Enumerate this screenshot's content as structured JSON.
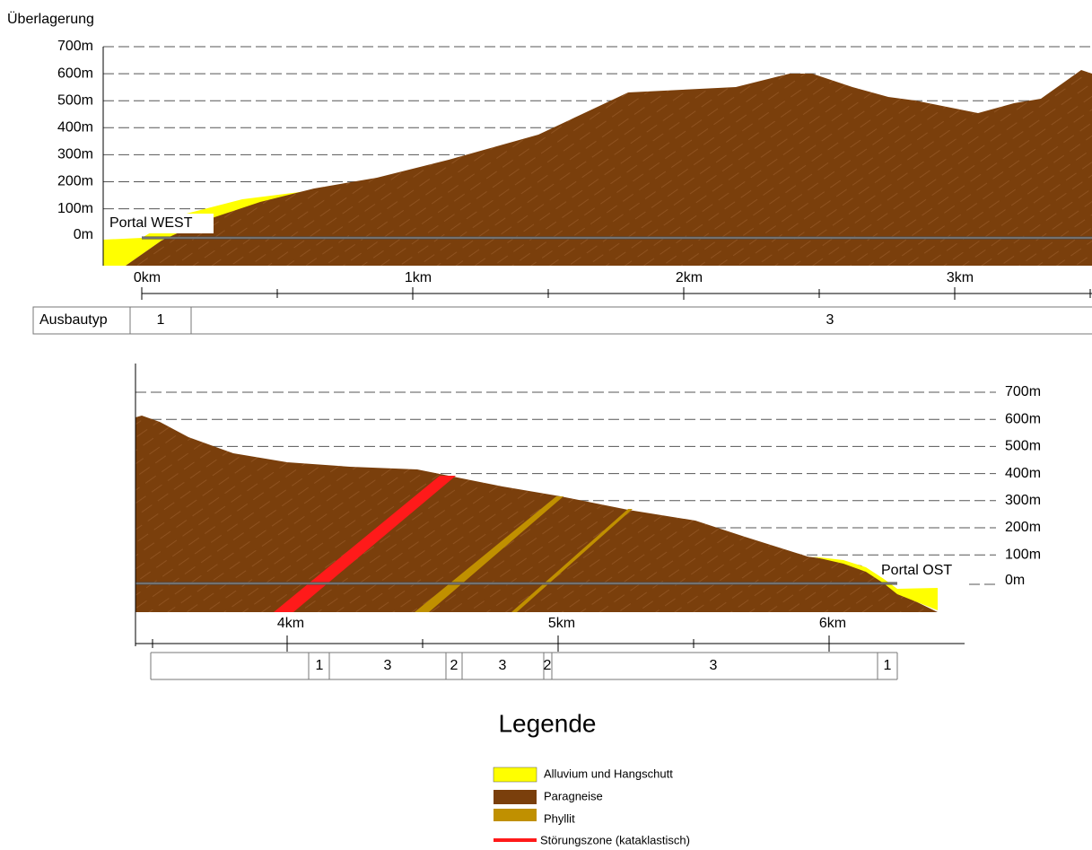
{
  "top_panel": {
    "axis_title": "Überlagerung",
    "y_labels": [
      "700m",
      "600m",
      "500m",
      "400m",
      "300m",
      "200m",
      "100m",
      "0m"
    ],
    "x_labels": [
      "0km",
      "1km",
      "2km",
      "3km"
    ],
    "portal": "Portal WEST",
    "ausbautyp": {
      "label": "Ausbautyp",
      "segments": [
        "1",
        "3"
      ]
    }
  },
  "bottom_panel": {
    "y_labels": [
      "700m",
      "600m",
      "500m",
      "400m",
      "300m",
      "200m",
      "100m",
      "0m"
    ],
    "x_labels": [
      "4km",
      "5km",
      "6km"
    ],
    "portal": "Portal OST",
    "ausbautyp_segments": [
      "1",
      "3",
      "2",
      "3",
      "2",
      "3",
      "1"
    ]
  },
  "legend": {
    "title": "Legende",
    "items": [
      "Alluvium und Hangschutt",
      "Paragneise",
      "Phyllit",
      "Störungszone (kataklastisch)"
    ]
  }
}
